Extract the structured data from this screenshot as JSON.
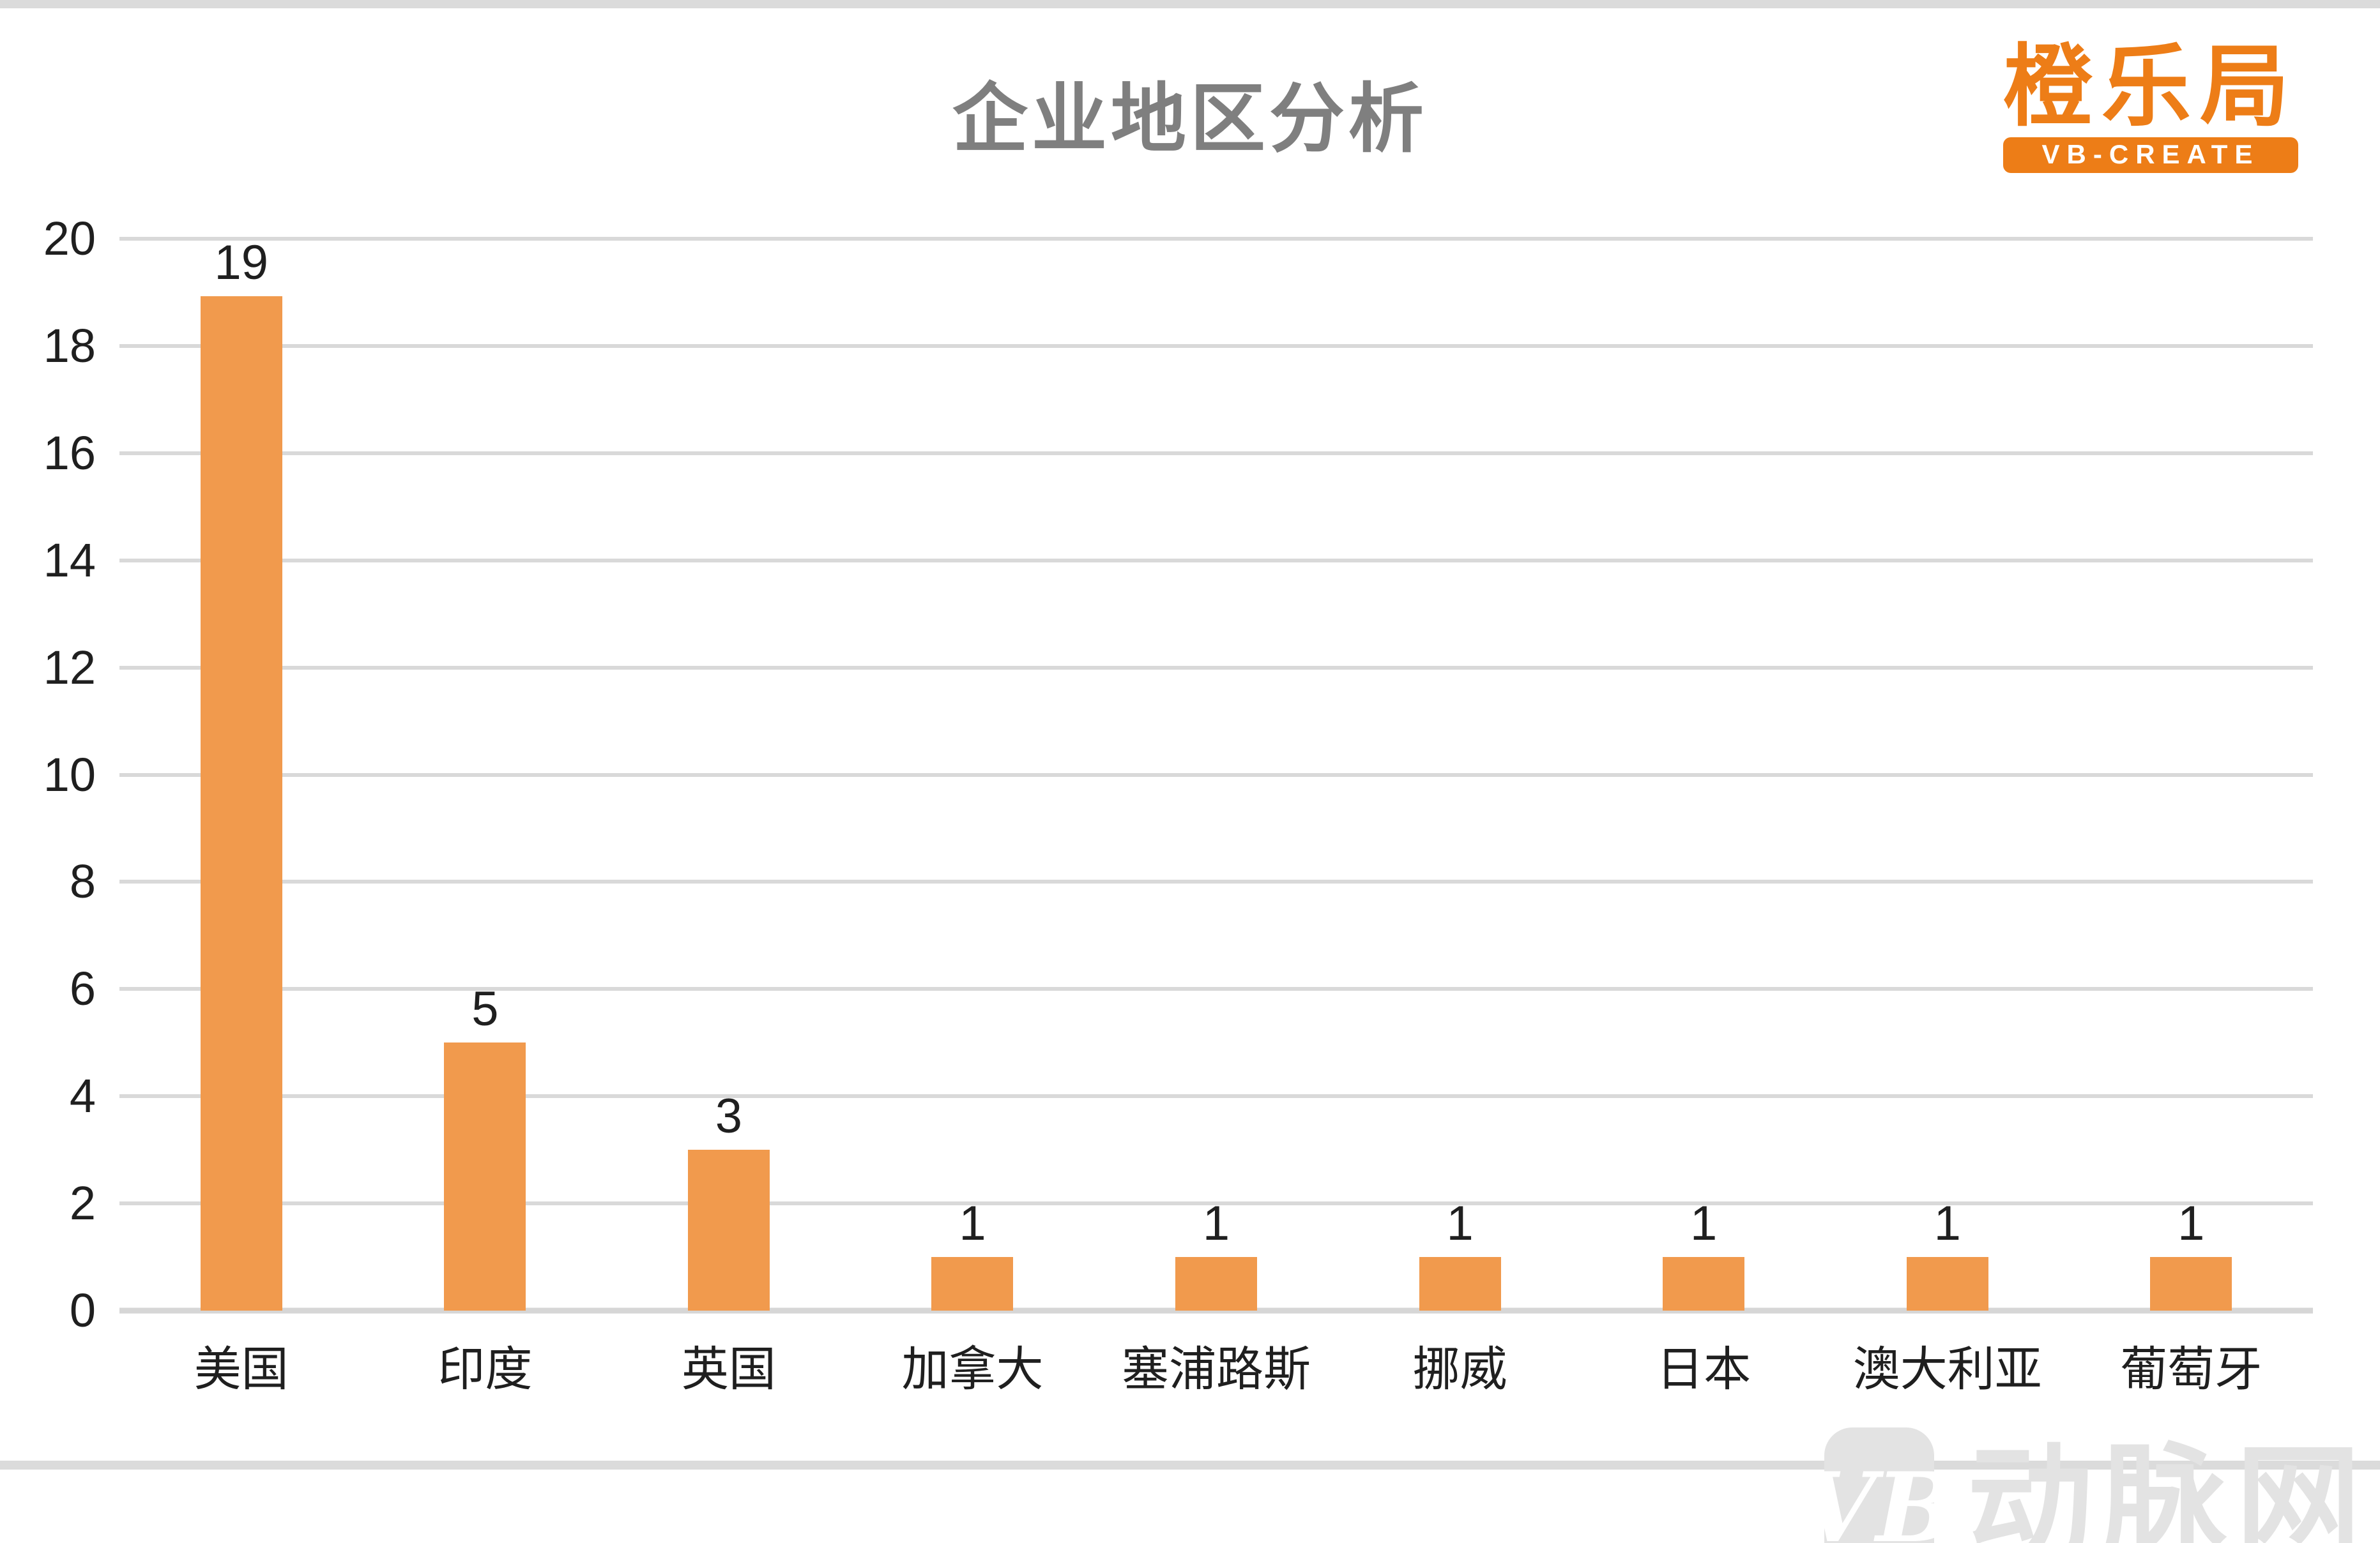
{
  "title": "企业地区分析",
  "logo": {
    "brand": "橙乐局",
    "badge": "VB-CREATE",
    "color": "#ed7d17"
  },
  "watermark": {
    "monogram": "VB",
    "text": "动脉网"
  },
  "chart_data": {
    "type": "bar",
    "title": "企业地区分析",
    "categories": [
      "美国",
      "印度",
      "英国",
      "加拿大",
      "塞浦路斯",
      "挪威",
      "日本",
      "澳大利亚",
      "葡萄牙"
    ],
    "values": [
      19,
      5,
      3,
      1,
      1,
      1,
      1,
      1,
      1
    ],
    "data_labels": [
      "19",
      "5",
      "3",
      "1",
      "1",
      "1",
      "1",
      "1",
      "1"
    ],
    "xlabel": "",
    "ylabel": "",
    "ylim": [
      0,
      20
    ],
    "yticks": [
      0,
      2,
      4,
      6,
      8,
      10,
      12,
      14,
      16,
      18,
      20
    ],
    "grid": true,
    "legend_position": "none",
    "bar_color": "#f19a4d",
    "gridline_color": "#d9d9d9"
  }
}
